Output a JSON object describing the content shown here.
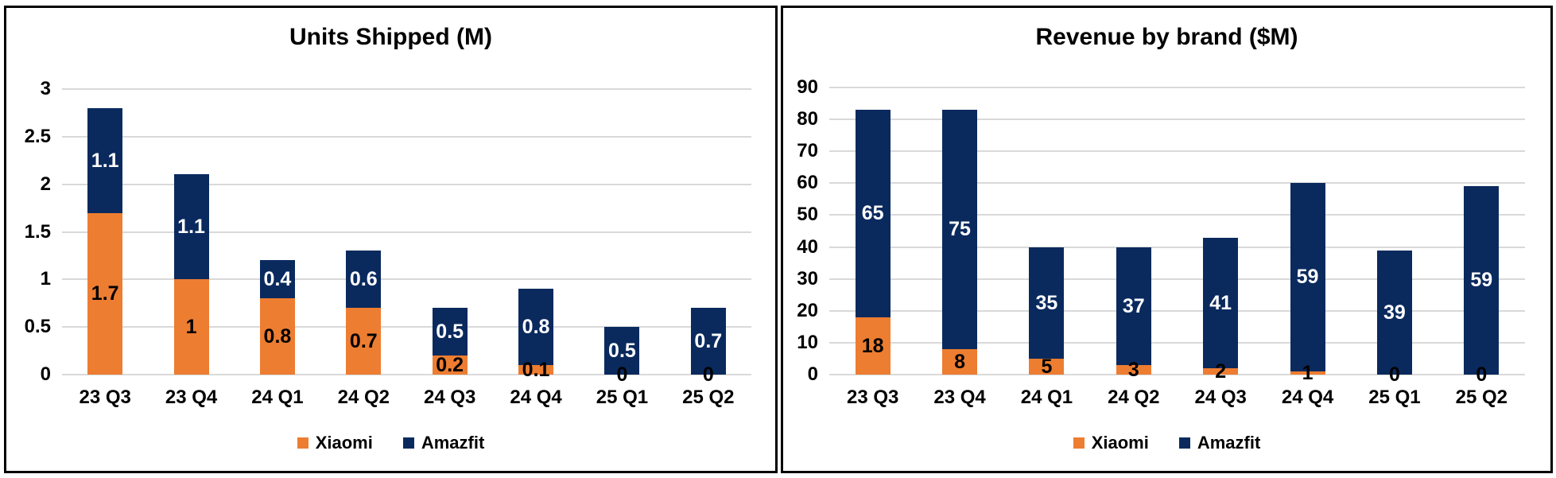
{
  "chart_data": [
    {
      "type": "bar",
      "subtype": "stacked-column",
      "title": "Units Shipped (M)",
      "categories": [
        "23 Q3",
        "23 Q4",
        "24 Q1",
        "24 Q2",
        "24 Q3",
        "24 Q4",
        "25 Q1",
        "25 Q2"
      ],
      "series": [
        {
          "name": "Xiaomi",
          "color": "#ED7D31",
          "label_color": "#000000",
          "values": [
            1.7,
            1,
            0.8,
            0.7,
            0.2,
            0.1,
            0,
            0
          ],
          "labels": [
            "1.7",
            "1",
            "0.8",
            "0.7",
            "0.2",
            "0.1",
            "0",
            "0"
          ]
        },
        {
          "name": "Amazfit",
          "color": "#0A2A5E",
          "label_color": "#FFFFFF",
          "values": [
            1.1,
            1.1,
            0.4,
            0.6,
            0.5,
            0.8,
            0.5,
            0.7
          ],
          "labels": [
            "1.1",
            "1.1",
            "0.4",
            "0.6",
            "0.5",
            "0.8",
            "0.5",
            "0.7"
          ]
        }
      ],
      "totals": [
        2.8,
        2.1,
        1.2,
        1.3,
        0.7,
        0.9,
        0.5,
        0.7
      ],
      "ylim": [
        0,
        3
      ],
      "yticks": [
        "3",
        "2.5",
        "2",
        "1.5",
        "1",
        "0.5",
        "0"
      ],
      "grid": true,
      "gridline_color": "#D9D9D9",
      "legend_position": "bottom"
    },
    {
      "type": "bar",
      "subtype": "stacked-column",
      "title": "Revenue by brand ($M)",
      "categories": [
        "23 Q3",
        "23 Q4",
        "24 Q1",
        "24 Q2",
        "24 Q3",
        "24 Q4",
        "25 Q1",
        "25 Q2"
      ],
      "series": [
        {
          "name": "Xiaomi",
          "color": "#ED7D31",
          "label_color": "#000000",
          "values": [
            18,
            8,
            5,
            3,
            2,
            1,
            0,
            0
          ],
          "labels": [
            "18",
            "8",
            "5",
            "3",
            "2",
            "1",
            "0",
            "0"
          ]
        },
        {
          "name": "Amazfit",
          "color": "#0A2A5E",
          "label_color": "#FFFFFF",
          "values": [
            65,
            75,
            35,
            37,
            41,
            59,
            39,
            59
          ],
          "labels": [
            "65",
            "75",
            "35",
            "37",
            "41",
            "59",
            "39",
            "59"
          ]
        }
      ],
      "totals": [
        83,
        83,
        40,
        40,
        43,
        60,
        39,
        59
      ],
      "ylim": [
        0,
        90
      ],
      "yticks": [
        "90",
        "80",
        "70",
        "60",
        "50",
        "40",
        "30",
        "20",
        "10",
        "0"
      ],
      "grid": true,
      "gridline_color": "#D9D9D9",
      "legend_position": "bottom"
    }
  ]
}
